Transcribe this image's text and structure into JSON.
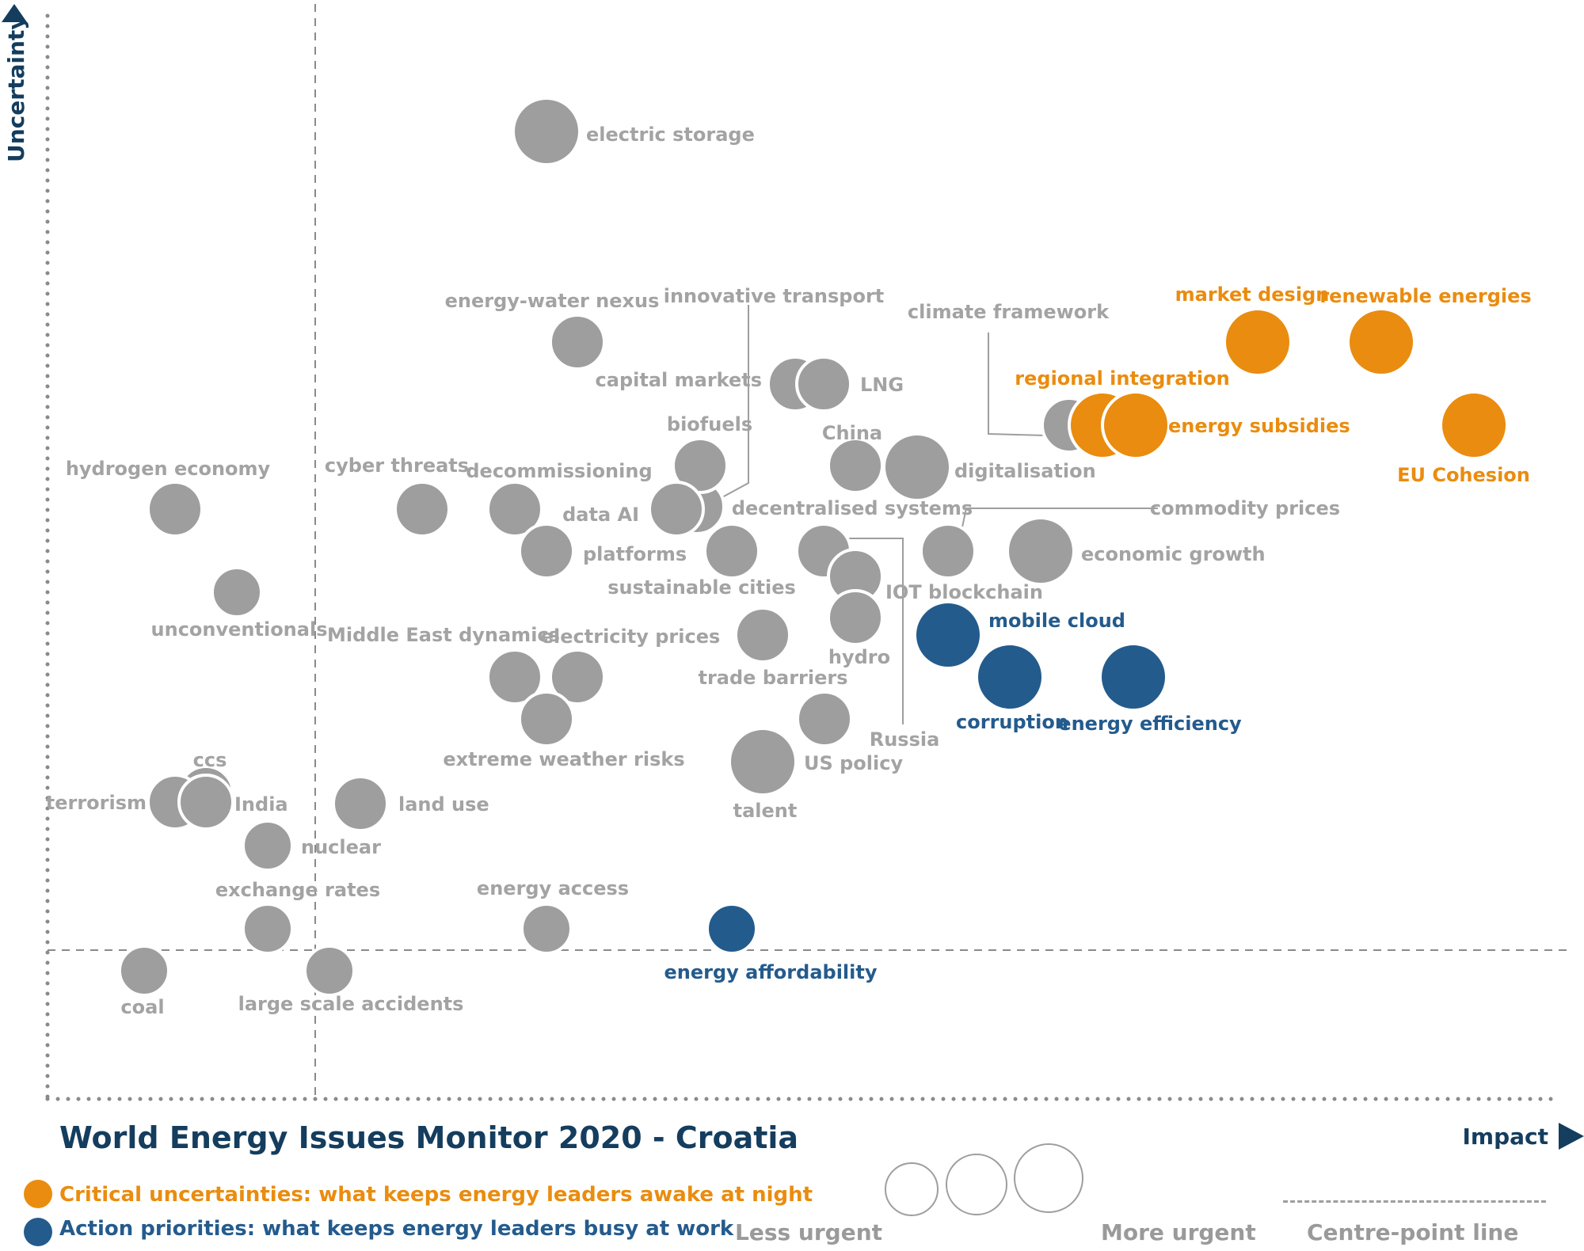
{
  "colors": {
    "critical": "#ea8c0f",
    "action": "#245b8d",
    "other": "#9e9e9e",
    "title": "#143d5e"
  },
  "chart_data": {
    "type": "scatter",
    "title": "World Energy Issues Monitor 2020 - Croatia",
    "xlabel": "Impact",
    "ylabel": "Uncertainty",
    "xlim": [
      0,
      100
    ],
    "ylim": [
      0,
      100
    ],
    "centre_point": {
      "x": 17,
      "y": 14
    },
    "points": [
      {
        "name": "electric storage",
        "x": 32,
        "y": 91,
        "size": 3,
        "group": "other"
      },
      {
        "name": "energy-water nexus",
        "x": 34,
        "y": 72,
        "size": 2,
        "group": "other"
      },
      {
        "name": "capital markets",
        "x": 48,
        "y": 68,
        "size": 2,
        "group": "other"
      },
      {
        "name": "LNG",
        "x": 50,
        "y": 68,
        "size": 2,
        "group": "other"
      },
      {
        "name": "innovative transport",
        "x": 44,
        "y": 57,
        "size": 2,
        "group": "other"
      },
      {
        "name": "climate framework",
        "x": 66,
        "y": 63,
        "size": 2,
        "group": "other"
      },
      {
        "name": "market design",
        "x": 78,
        "y": 71,
        "size": 3,
        "group": "critical"
      },
      {
        "name": "renewable energies",
        "x": 86,
        "y": 71,
        "size": 3,
        "group": "critical"
      },
      {
        "name": "regional integration",
        "x": 68,
        "y": 63,
        "size": 3,
        "group": "critical"
      },
      {
        "name": "energy subsidies",
        "x": 70,
        "y": 63,
        "size": 3,
        "group": "critical"
      },
      {
        "name": "EU Cohesion",
        "x": 93,
        "y": 63,
        "size": 3,
        "group": "critical"
      },
      {
        "name": "hydrogen economy",
        "x": 8,
        "y": 56,
        "size": 2,
        "group": "other"
      },
      {
        "name": "cyber threats",
        "x": 24,
        "y": 56,
        "size": 2,
        "group": "other"
      },
      {
        "name": "decommissioning",
        "x": 30,
        "y": 56,
        "size": 2,
        "group": "other"
      },
      {
        "name": "biofuels",
        "x": 42,
        "y": 59,
        "size": 2,
        "group": "other"
      },
      {
        "name": "data AI",
        "x": 40,
        "y": 56,
        "size": 2,
        "group": "other"
      },
      {
        "name": "China",
        "x": 52,
        "y": 60,
        "size": 2,
        "group": "other"
      },
      {
        "name": "digitalisation",
        "x": 56,
        "y": 60,
        "size": 3,
        "group": "other"
      },
      {
        "name": "platforms",
        "x": 32,
        "y": 52,
        "size": 2,
        "group": "other"
      },
      {
        "name": "sustainable cities",
        "x": 44,
        "y": 52,
        "size": 2,
        "group": "other"
      },
      {
        "name": "decentralised systems",
        "x": 50,
        "y": 52,
        "size": 2,
        "group": "other"
      },
      {
        "name": "IOT blockchain",
        "x": 52,
        "y": 49,
        "size": 2,
        "group": "other"
      },
      {
        "name": "commodity prices",
        "x": 58,
        "y": 52,
        "size": 2,
        "group": "other"
      },
      {
        "name": "economic growth",
        "x": 64,
        "y": 52,
        "size": 3,
        "group": "other"
      },
      {
        "name": "unconventionals",
        "x": 12,
        "y": 48,
        "size": 1,
        "group": "other"
      },
      {
        "name": "hydro",
        "x": 52,
        "y": 45,
        "size": 2,
        "group": "other"
      },
      {
        "name": "mobile cloud",
        "x": 58,
        "y": 44,
        "size": 3,
        "group": "action"
      },
      {
        "name": "Middle East dynamics",
        "x": 30,
        "y": 40,
        "size": 2,
        "group": "other"
      },
      {
        "name": "electricity prices",
        "x": 34,
        "y": 40,
        "size": 2,
        "group": "other"
      },
      {
        "name": "trade barriers",
        "x": 46,
        "y": 44,
        "size": 2,
        "group": "other"
      },
      {
        "name": "corruption",
        "x": 62,
        "y": 40,
        "size": 3,
        "group": "action"
      },
      {
        "name": "energy efficiency",
        "x": 70,
        "y": 40,
        "size": 3,
        "group": "action"
      },
      {
        "name": "extreme weather risks",
        "x": 32,
        "y": 36,
        "size": 2,
        "group": "other"
      },
      {
        "name": "Russia",
        "x": 50,
        "y": 36,
        "size": 2,
        "group": "other"
      },
      {
        "name": "US policy",
        "x": 46,
        "y": 32,
        "size": 3,
        "group": "other"
      },
      {
        "name": "talent",
        "x": 46,
        "y": 32,
        "size": 3,
        "group": "other"
      },
      {
        "name": "ccs",
        "x": 10,
        "y": 28,
        "size": 2,
        "group": "other"
      },
      {
        "name": "terrorism",
        "x": 8,
        "y": 28,
        "size": 2,
        "group": "other"
      },
      {
        "name": "India",
        "x": 10,
        "y": 28,
        "size": 2,
        "group": "other"
      },
      {
        "name": "land use",
        "x": 20,
        "y": 28,
        "size": 2,
        "group": "other"
      },
      {
        "name": "nuclear",
        "x": 14,
        "y": 24,
        "size": 1,
        "group": "other"
      },
      {
        "name": "exchange rates",
        "x": 14,
        "y": 16,
        "size": 1,
        "group": "other"
      },
      {
        "name": "energy access",
        "x": 32,
        "y": 16,
        "size": 1,
        "group": "other"
      },
      {
        "name": "energy affordability",
        "x": 44,
        "y": 16,
        "size": 1,
        "group": "action"
      },
      {
        "name": "coal",
        "x": 6,
        "y": 12,
        "size": 1,
        "group": "other"
      },
      {
        "name": "large scale accidents",
        "x": 18,
        "y": 12,
        "size": 1,
        "group": "other"
      }
    ]
  },
  "legend": {
    "critical": "Critical uncertainties: what keeps energy leaders awake at night",
    "action": "Action priorities: what keeps energy leaders busy at work",
    "less_urgent": "Less urgent",
    "more_urgent": "More urgent",
    "centre_line": "Centre-point  line"
  }
}
